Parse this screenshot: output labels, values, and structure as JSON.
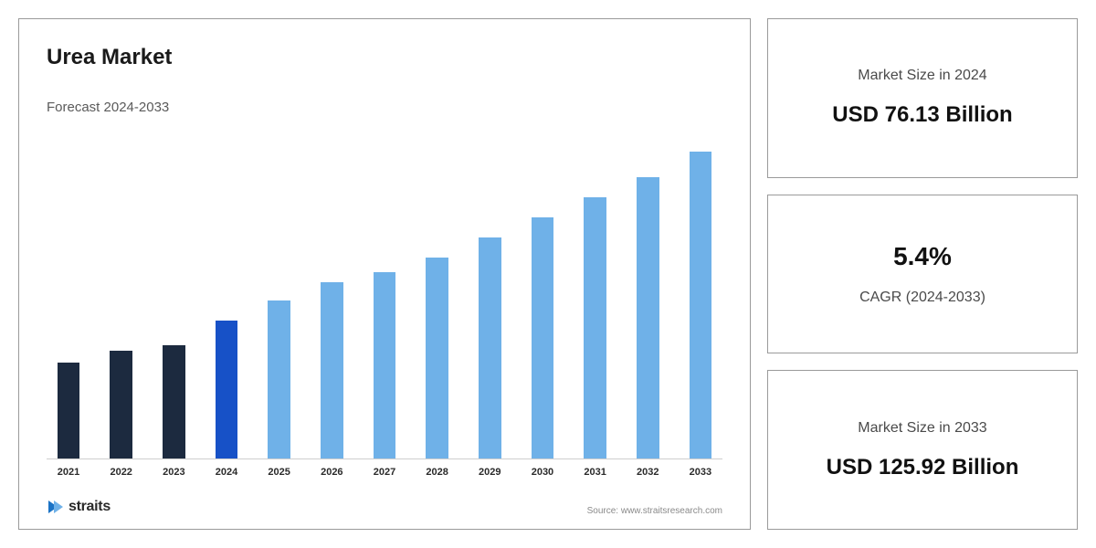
{
  "chart": {
    "title": "Urea Market",
    "subtitle": "Forecast 2024-2033",
    "type": "bar",
    "categories": [
      "2021",
      "2022",
      "2023",
      "2024",
      "2025",
      "2026",
      "2027",
      "2028",
      "2029",
      "2030",
      "2031",
      "2032",
      "2033"
    ],
    "values": [
      38,
      43,
      45,
      55,
      63,
      70,
      74,
      80,
      88,
      96,
      104,
      112,
      122
    ],
    "bar_colors": [
      "#1c2a3f",
      "#1c2a3f",
      "#1c2a3f",
      "#1751c7",
      "#6fb1e8",
      "#6fb1e8",
      "#6fb1e8",
      "#6fb1e8",
      "#6fb1e8",
      "#6fb1e8",
      "#6fb1e8",
      "#6fb1e8",
      "#6fb1e8"
    ],
    "ylim_max": 130,
    "axis_color": "#cfcfcf",
    "xlabel_fontsize": 11,
    "xlabel_color": "#2a2a2a",
    "bar_width_pct": 62,
    "background_color": "#ffffff",
    "panel_border_color": "#9a9a9a",
    "source_text": "Source: www.straitsresearch.com",
    "logo_text": "straits",
    "logo_color": "#1b73c5"
  },
  "stats": {
    "card1": {
      "label": "Market Size in 2024",
      "value": "USD 76.13 Billion"
    },
    "card2": {
      "value": "5.4%",
      "label": "CAGR (2024-2033)"
    },
    "card3": {
      "label": "Market Size in 2033",
      "value": "USD 125.92 Billion"
    }
  }
}
